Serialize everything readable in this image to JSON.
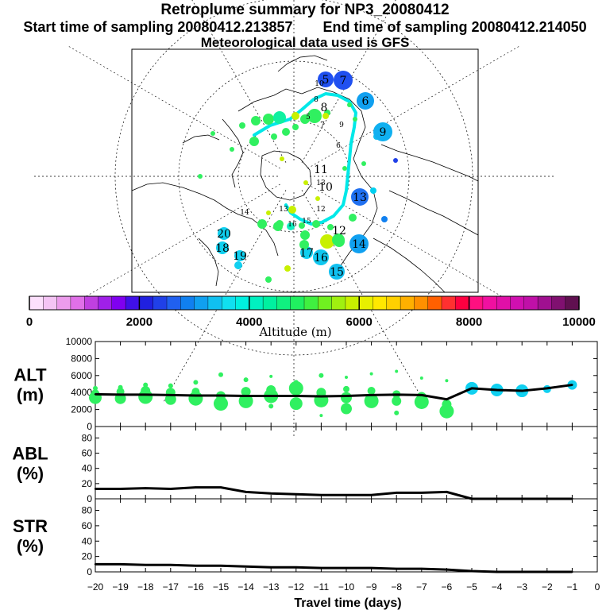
{
  "header": {
    "title": "Retroplume summary for NP3_20080412",
    "start_label": "Start time of sampling 20080412.213857",
    "end_label": "End time of sampling 20080412.214050",
    "met_label": "Meteorological data used is GFS"
  },
  "colorbar": {
    "ticks": [
      "0",
      "2000",
      "4000",
      "6000",
      "8000",
      "10000"
    ],
    "label": "Altitude (m)",
    "colors": [
      "#fce0fc",
      "#f4c4f4",
      "#ec9cec",
      "#e070e8",
      "#c040e0",
      "#a020e8",
      "#8000f0",
      "#4010e8",
      "#2020e0",
      "#2040e8",
      "#2060f0",
      "#1080f0",
      "#10a0f0",
      "#10c0f0",
      "#10e0f0",
      "#00f0e0",
      "#00f0c0",
      "#00f0a0",
      "#10f080",
      "#20f060",
      "#40f040",
      "#70f020",
      "#a0f010",
      "#c8f000",
      "#e8f000",
      "#ffe800",
      "#ffd000",
      "#ffb000",
      "#ff9000",
      "#ff6000",
      "#ff3030",
      "#ff0040",
      "#ff1080",
      "#f010a0",
      "#e010a8",
      "#d010b0",
      "#c010a8",
      "#a01090",
      "#801070",
      "#601050"
    ]
  },
  "map": {
    "time_labels": [
      "5",
      "6",
      "7",
      "8",
      "9",
      "10",
      "11",
      "12",
      "13",
      "14",
      "15",
      "16",
      "17",
      "18",
      "19",
      "20"
    ]
  },
  "chart_data": [
    {
      "type": "line",
      "name": "ALT",
      "ylabel": "ALT\n(m)",
      "ylabel_line1": "ALT",
      "ylabel_line2": "(m)",
      "ylim": [
        0,
        10000
      ],
      "yticks": [
        "0",
        "2000",
        "4000",
        "6000",
        "8000",
        "10000"
      ],
      "x": [
        -20,
        -19,
        -18,
        -17,
        -16,
        -15,
        -14,
        -13,
        -12,
        -11,
        -10,
        -9,
        -8,
        -7,
        -6,
        -5,
        -4,
        -3,
        -2,
        -1
      ],
      "values": [
        3800,
        3750,
        3750,
        3700,
        3650,
        3650,
        3600,
        3600,
        3600,
        3550,
        3600,
        3700,
        3750,
        3700,
        3200,
        4500,
        4300,
        4200,
        4500,
        4900
      ],
      "clusters": [
        {
          "x": -20,
          "points": [
            [
              3400,
              8
            ],
            [
              3900,
              5
            ],
            [
              4500,
              3
            ]
          ]
        },
        {
          "x": -19,
          "points": [
            [
              3300,
              7
            ],
            [
              4100,
              5
            ],
            [
              4600,
              3
            ]
          ]
        },
        {
          "x": -18,
          "points": [
            [
              3500,
              9
            ],
            [
              4200,
              6
            ],
            [
              4900,
              3
            ]
          ]
        },
        {
          "x": -17,
          "points": [
            [
              3200,
              7
            ],
            [
              4000,
              6
            ],
            [
              4800,
              3
            ]
          ]
        },
        {
          "x": -16,
          "points": [
            [
              3300,
              9
            ],
            [
              4100,
              5
            ],
            [
              5200,
              3
            ]
          ]
        },
        {
          "x": -15,
          "points": [
            [
              2700,
              9
            ],
            [
              3600,
              6
            ],
            [
              6100,
              3
            ]
          ]
        },
        {
          "x": -14,
          "points": [
            [
              3000,
              9
            ],
            [
              4100,
              6
            ],
            [
              5500,
              3
            ]
          ]
        },
        {
          "x": -13,
          "points": [
            [
              3600,
              9
            ],
            [
              4300,
              6
            ],
            [
              2400,
              3
            ],
            [
              5900,
              2
            ]
          ]
        },
        {
          "x": -12,
          "points": [
            [
              2700,
              8
            ],
            [
              4500,
              9
            ],
            [
              5200,
              3
            ]
          ]
        },
        {
          "x": -11,
          "points": [
            [
              3100,
              9
            ],
            [
              4000,
              6
            ],
            [
              6000,
              3
            ],
            [
              1300,
              2
            ]
          ]
        },
        {
          "x": -10,
          "points": [
            [
              2100,
              7
            ],
            [
              3400,
              7
            ],
            [
              4400,
              4
            ],
            [
              5800,
              2
            ]
          ]
        },
        {
          "x": -9,
          "points": [
            [
              3000,
              9
            ],
            [
              4200,
              5
            ],
            [
              6200,
              2
            ]
          ]
        },
        {
          "x": -8,
          "points": [
            [
              3000,
              6
            ],
            [
              3800,
              5
            ],
            [
              1600,
              3
            ],
            [
              6500,
              2
            ]
          ]
        },
        {
          "x": -7,
          "points": [
            [
              2900,
              9
            ],
            [
              3500,
              6
            ],
            [
              5700,
              2
            ]
          ]
        },
        {
          "x": -6,
          "points": [
            [
              1800,
              9
            ],
            [
              2600,
              6
            ],
            [
              5400,
              2
            ]
          ]
        },
        {
          "x": -5,
          "points": [
            [
              4500,
              8
            ]
          ]
        },
        {
          "x": -4,
          "points": [
            [
              4300,
              8
            ]
          ]
        },
        {
          "x": -3,
          "points": [
            [
              4200,
              8
            ]
          ]
        },
        {
          "x": -2,
          "points": [
            [
              4400,
              5
            ]
          ]
        },
        {
          "x": -1,
          "points": [
            [
              4900,
              6
            ]
          ]
        }
      ]
    },
    {
      "type": "line",
      "name": "ABL",
      "ylabel_line1": "ABL",
      "ylabel_line2": "(%)",
      "ylim": [
        0,
        95
      ],
      "yticks": [
        "0",
        "20",
        "40",
        "60",
        "80"
      ],
      "x": [
        -20,
        -19,
        -18,
        -17,
        -16,
        -15,
        -14,
        -13,
        -12,
        -11,
        -10,
        -9,
        -8,
        -7,
        -6,
        -5,
        -4,
        -3,
        -2,
        -1
      ],
      "values": [
        13,
        13,
        14,
        13,
        15,
        15,
        9,
        7,
        6,
        5,
        5,
        5,
        8,
        8,
        9,
        0,
        0,
        0,
        0,
        0
      ]
    },
    {
      "type": "line",
      "name": "STR",
      "ylabel_line1": "STR",
      "ylabel_line2": "(%)",
      "ylim": [
        0,
        95
      ],
      "yticks": [
        "0",
        "20",
        "40",
        "60",
        "80"
      ],
      "x": [
        -20,
        -19,
        -18,
        -17,
        -16,
        -15,
        -14,
        -13,
        -12,
        -11,
        -10,
        -9,
        -8,
        -7,
        -6,
        -5,
        -4,
        -3,
        -2,
        -1
      ],
      "values": [
        10,
        10,
        9,
        9,
        8,
        8,
        7,
        6,
        6,
        5,
        5,
        5,
        4,
        4,
        3,
        1,
        0,
        0,
        0,
        0
      ],
      "xlabel": "Travel time (days)",
      "xticks": [
        "−20",
        "−19",
        "−18",
        "−17",
        "−16",
        "−15",
        "−14",
        "−13",
        "−12",
        "−11",
        "−10",
        "−9",
        "−8",
        "−7",
        "−6",
        "−5",
        "−4",
        "−3",
        "−2",
        "−1",
        "0"
      ]
    }
  ]
}
